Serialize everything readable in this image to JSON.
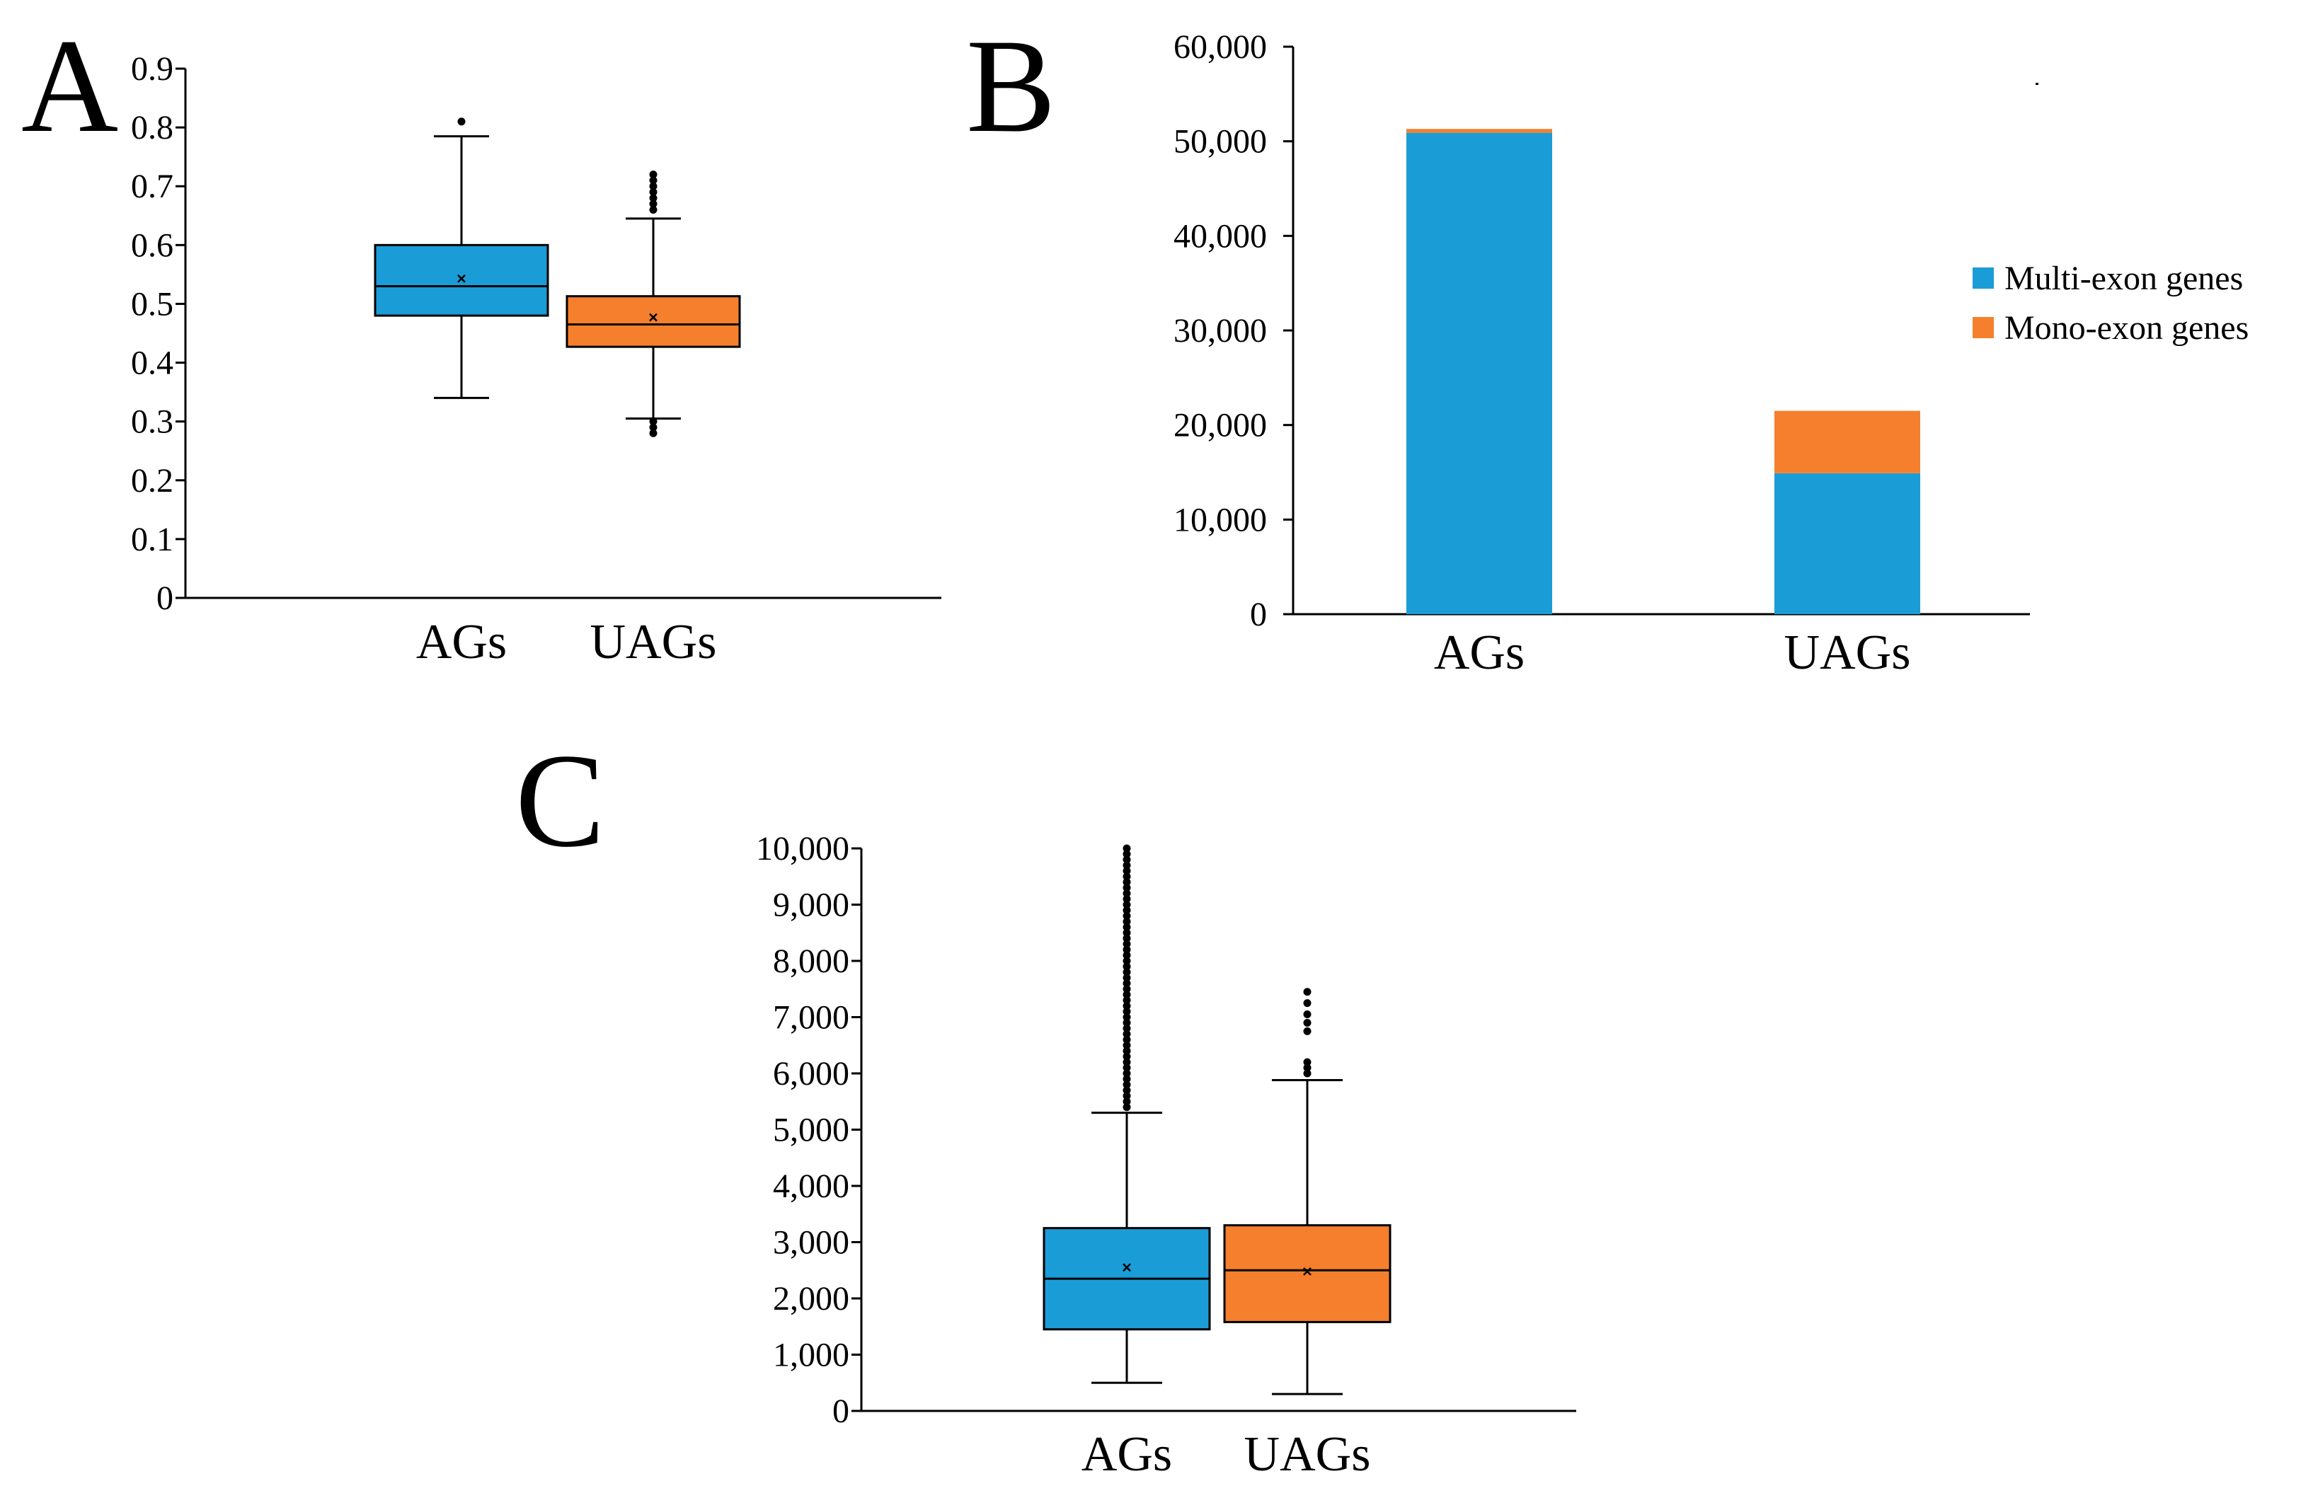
{
  "colors": {
    "ags": "#1a9cd7",
    "uags": "#f57f2c",
    "multi_exon": "#1a9cd7",
    "mono_exon": "#f57f2c"
  },
  "chart_data": [
    {
      "id": "A",
      "panel_label": "A",
      "type": "box",
      "title": "",
      "xlabel": "",
      "ylabel": "",
      "ylim": [
        0,
        0.9
      ],
      "yticks": [
        0,
        0.1,
        0.2,
        0.3,
        0.4,
        0.5,
        0.6,
        0.7,
        0.8,
        0.9
      ],
      "ytick_labels": [
        "0",
        "0.1",
        "0.2",
        "0.3",
        "0.4",
        "0.5",
        "0.6",
        "0.7",
        "0.8",
        "0.9"
      ],
      "categories": [
        "AGs",
        "UAGs"
      ],
      "boxes": [
        {
          "category": "AGs",
          "color": "#1a9cd7",
          "whisker_low": 0.34,
          "q1": 0.48,
          "median": 0.53,
          "q3": 0.6,
          "whisker_high": 0.785,
          "mean": 0.543,
          "outliers": [
            0.81
          ]
        },
        {
          "category": "UAGs",
          "color": "#f57f2c",
          "whisker_low": 0.305,
          "q1": 0.427,
          "median": 0.465,
          "q3": 0.513,
          "whisker_high": 0.645,
          "mean": 0.477,
          "outliers": [
            0.28,
            0.29,
            0.3,
            0.66,
            0.67,
            0.68,
            0.69,
            0.7,
            0.71,
            0.72
          ]
        }
      ]
    },
    {
      "id": "B",
      "panel_label": "B",
      "type": "bar",
      "stacked": true,
      "title": "",
      "xlabel": "",
      "ylabel": "",
      "ylim": [
        0,
        60000
      ],
      "yticks": [
        0,
        10000,
        20000,
        30000,
        40000,
        50000,
        60000
      ],
      "ytick_labels": [
        "0",
        "10,000",
        "20,000",
        "30,000",
        "40,000",
        "50,000",
        "60,000"
      ],
      "categories": [
        "AGs",
        "UAGs"
      ],
      "series": [
        {
          "name": "Multi-exon genes",
          "color": "#1a9cd7",
          "values": [
            50900,
            14900
          ]
        },
        {
          "name": "Mono-exon genes",
          "color": "#f57f2c",
          "values": [
            400,
            6600
          ]
        }
      ],
      "legend": "right"
    },
    {
      "id": "C",
      "panel_label": "C",
      "type": "box",
      "title": "",
      "xlabel": "",
      "ylabel": "",
      "ylim": [
        0,
        10000
      ],
      "yticks": [
        0,
        1000,
        2000,
        3000,
        4000,
        5000,
        6000,
        7000,
        8000,
        9000,
        10000
      ],
      "ytick_labels": [
        "0",
        "1,000",
        "2,000",
        "3,000",
        "4,000",
        "5,000",
        "6,000",
        "7,000",
        "8,000",
        "9,000",
        "10,000"
      ],
      "categories": [
        "AGs",
        "UAGs"
      ],
      "boxes": [
        {
          "category": "AGs",
          "color": "#1a9cd7",
          "whisker_low": 500,
          "q1": 1450,
          "median": 2350,
          "q3": 3250,
          "whisker_high": 5300,
          "mean": 2550,
          "outliers": [
            5400,
            5500,
            5600,
            5700,
            5800,
            5900,
            6000,
            6100,
            6200,
            6300,
            6400,
            6500,
            6600,
            6700,
            6800,
            6900,
            7000,
            7100,
            7200,
            7300,
            7400,
            7500,
            7600,
            7700,
            7800,
            7900,
            8000,
            8100,
            8200,
            8300,
            8400,
            8500,
            8600,
            8700,
            8800,
            8900,
            9000,
            9100,
            9200,
            9300,
            9400,
            9500,
            9600,
            9700,
            9800,
            9900,
            10000
          ]
        },
        {
          "category": "UAGs",
          "color": "#f57f2c",
          "whisker_low": 300,
          "q1": 1580,
          "median": 2500,
          "q3": 3300,
          "whisker_high": 5880,
          "mean": 2480,
          "outliers": [
            6000,
            6100,
            6200,
            6750,
            6900,
            7050,
            7250,
            7450
          ]
        }
      ]
    }
  ]
}
